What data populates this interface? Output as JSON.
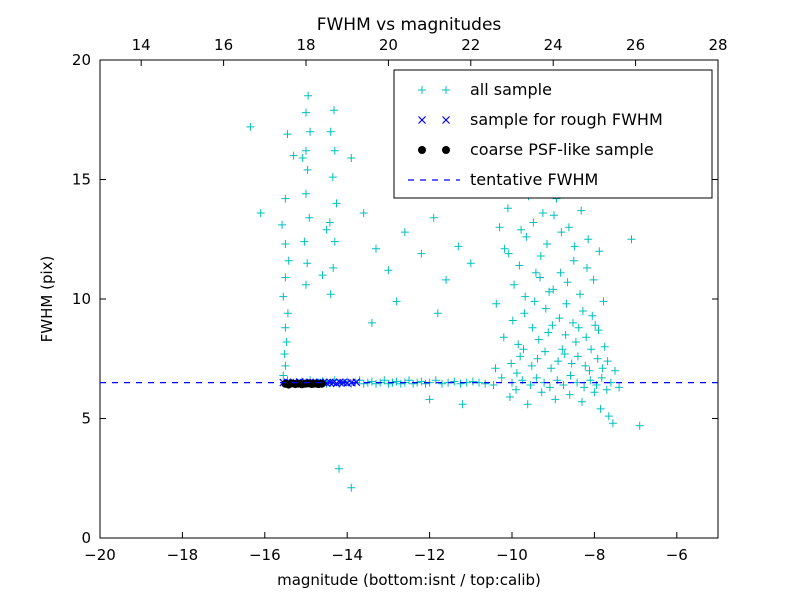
{
  "figure": {
    "title": "FWHM vs magnitudes",
    "xlabel": "magnitude (bottom:isnt / top:calib)",
    "ylabel": "FWHM (pix)"
  },
  "chart_data": {
    "type": "scatter",
    "title": "FWHM vs magnitudes",
    "xlabel": "magnitude (bottom:isnt / top:calib)",
    "ylabel": "FWHM (pix)",
    "xlim": [
      -20,
      -5
    ],
    "ylim": [
      0,
      20
    ],
    "grid": false,
    "legend_position": "upper right",
    "x_ticks_bottom_values": [
      -20,
      -18,
      -16,
      -14,
      -12,
      -10,
      -8,
      -6
    ],
    "x_ticks_bottom_labels": [
      "−20",
      "−18",
      "−16",
      "−14",
      "−12",
      "−10",
      "−8",
      "−6"
    ],
    "x_ticks_top_positions": [
      -19,
      -17,
      -15,
      -13,
      -11,
      -9,
      -7,
      -5
    ],
    "x_ticks_top_labels": [
      "14",
      "16",
      "18",
      "20",
      "22",
      "24",
      "26",
      "28"
    ],
    "y_ticks_values": [
      0,
      5,
      10,
      15,
      20
    ],
    "y_ticks_labels": [
      "0",
      "5",
      "10",
      "15",
      "20"
    ],
    "series": [
      {
        "name": "all sample",
        "type": "scatter",
        "marker": "plus",
        "color": "#00bfbf",
        "points": [
          -16.35,
          17.2,
          -16.1,
          13.6,
          -15.58,
          13.1,
          -15.55,
          6.8,
          -15.55,
          10.1,
          -15.52,
          7.7,
          -15.5,
          7.2,
          -15.5,
          8.8,
          -15.5,
          10.9,
          -15.5,
          12.3,
          -15.5,
          14.2,
          -15.47,
          8.2,
          -15.45,
          6.6,
          -15.45,
          16.9,
          -15.44,
          9.4,
          -15.42,
          11.6,
          -15.3,
          16.0,
          -15.08,
          15.9,
          -15.04,
          12.4,
          -15.0,
          10.6,
          -15.0,
          14.4,
          -15.0,
          16.2,
          -15.0,
          17.8,
          -14.97,
          11.5,
          -14.96,
          15.4,
          -14.95,
          18.5,
          -14.92,
          13.4,
          -14.9,
          17.0,
          -14.6,
          11.0,
          -14.5,
          12.9,
          -14.42,
          13.2,
          -14.4,
          10.2,
          -14.4,
          17.0,
          -14.35,
          15.1,
          -14.34,
          11.3,
          -14.32,
          17.9,
          -14.3,
          12.4,
          -14.3,
          16.2,
          -14.26,
          14.0,
          -14.2,
          2.9,
          -13.9,
          2.1,
          -13.9,
          15.9,
          -13.6,
          13.6,
          -13.4,
          9.0,
          -13.3,
          12.1,
          -13.0,
          11.2,
          -12.8,
          9.9,
          -12.6,
          12.8,
          -12.35,
          14.9,
          -12.2,
          11.9,
          -12.0,
          5.8,
          -11.9,
          13.4,
          -11.8,
          9.4,
          -11.6,
          10.8,
          -11.3,
          12.2,
          -11.2,
          5.6,
          -11.0,
          11.5,
          -15.3,
          6.5,
          -15.2,
          6.45,
          -15.1,
          6.55,
          -15.0,
          6.5,
          -14.9,
          6.6,
          -14.8,
          6.45,
          -14.7,
          6.5,
          -14.6,
          6.55,
          -14.5,
          6.45,
          -14.4,
          6.5,
          -14.3,
          6.6,
          -14.2,
          6.45,
          -14.1,
          6.5,
          -14.0,
          6.55,
          -13.9,
          6.45,
          -13.8,
          6.5,
          -13.7,
          6.6,
          -13.6,
          6.45,
          -13.5,
          6.5,
          -13.4,
          6.55,
          -13.3,
          6.45,
          -13.2,
          6.5,
          -13.1,
          6.6,
          -13.0,
          6.45,
          -12.9,
          6.5,
          -12.8,
          6.55,
          -12.7,
          6.45,
          -12.6,
          6.5,
          -12.5,
          6.6,
          -12.4,
          6.45,
          -12.3,
          6.5,
          -12.2,
          6.55,
          -12.1,
          6.45,
          -12.0,
          6.5,
          -11.85,
          6.6,
          -11.7,
          6.45,
          -11.55,
          6.5,
          -11.4,
          6.55,
          -11.25,
          6.45,
          -11.1,
          6.5,
          -10.95,
          6.55,
          -10.8,
          6.5,
          -10.65,
          6.45,
          -10.45,
          6.4,
          -10.4,
          7.1,
          -10.38,
          9.8,
          -10.3,
          13.0,
          -10.25,
          6.7,
          -10.2,
          8.4,
          -10.18,
          12.1,
          -10.1,
          13.8,
          -10.05,
          5.9,
          -10.0,
          6.5,
          -10.02,
          7.3,
          -9.98,
          9.1,
          -9.95,
          10.6,
          -10.08,
          11.9,
          -9.9,
          6.2,
          -9.88,
          6.9,
          -9.85,
          8.1,
          -9.82,
          11.4,
          -9.8,
          7.6,
          -9.78,
          12.9,
          -9.75,
          6.6,
          -9.72,
          7.9,
          -9.7,
          9.4,
          -9.68,
          10.1,
          -9.65,
          12.6,
          -9.62,
          5.6,
          -9.6,
          14.3,
          -9.55,
          6.4,
          -9.52,
          7.2,
          -9.5,
          8.8,
          -9.48,
          13.2,
          -9.45,
          9.9,
          -9.42,
          11.1,
          -9.4,
          6.7,
          -9.38,
          7.5,
          -9.35,
          8.3,
          -9.32,
          10.9,
          -9.3,
          11.8,
          -9.28,
          6.1,
          -9.25,
          13.6,
          -9.22,
          6.5,
          -9.2,
          7.8,
          -9.18,
          9.6,
          -9.15,
          12.3,
          -9.12,
          8.6,
          -9.1,
          10.3,
          -9.08,
          6.3,
          -9.05,
          7.1,
          -9.02,
          8.9,
          -9.0,
          10.4,
          -8.98,
          13.5,
          -8.95,
          5.8,
          -8.92,
          14.2,
          -8.9,
          6.6,
          -8.88,
          7.4,
          -8.85,
          9.2,
          -8.82,
          11.1,
          -8.8,
          12.8,
          -8.78,
          7.9,
          -8.75,
          6.4,
          -8.72,
          7.7,
          -8.7,
          8.5,
          -8.68,
          9.8,
          -8.65,
          10.7,
          -8.62,
          13.0,
          -8.6,
          6.0,
          -8.58,
          6.8,
          -8.55,
          7.3,
          -8.52,
          9.0,
          -8.5,
          11.6,
          -8.48,
          12.2,
          -8.45,
          8.2,
          -8.42,
          6.5,
          -8.4,
          7.6,
          -8.38,
          8.8,
          -8.35,
          10.2,
          -8.32,
          13.7,
          -8.3,
          5.7,
          -8.28,
          9.5,
          -8.25,
          6.3,
          -8.22,
          7.2,
          -8.2,
          8.4,
          -8.18,
          11.3,
          -8.15,
          12.5,
          -8.12,
          7.0,
          -8.1,
          6.6,
          -8.08,
          7.9,
          -8.05,
          9.3,
          -8.02,
          10.8,
          -8.0,
          6.1,
          -7.98,
          8.9,
          -7.95,
          6.4,
          -7.92,
          7.5,
          -7.9,
          8.7,
          -7.88,
          12.0,
          -7.85,
          5.4,
          -7.82,
          6.7,
          -7.8,
          7.1,
          -7.78,
          9.9,
          -7.75,
          8.0,
          -7.7,
          6.2,
          -7.68,
          7.4,
          -7.65,
          5.1,
          -7.6,
          6.5,
          -7.55,
          4.8,
          -7.5,
          7.0,
          -7.4,
          6.3,
          -7.1,
          12.5,
          -6.9,
          4.7
        ]
      },
      {
        "name": "sample for rough FWHM",
        "type": "scatter",
        "marker": "x",
        "color": "#0000ff",
        "points": [
          -15.55,
          6.5,
          -15.45,
          6.52,
          -15.38,
          6.48,
          -15.3,
          6.5,
          -15.22,
          6.47,
          -15.15,
          6.53,
          -15.05,
          6.5,
          -14.98,
          6.48,
          -14.9,
          6.52,
          -14.82,
          6.5,
          -14.74,
          6.47,
          -14.66,
          6.52,
          -14.58,
          6.5,
          -14.5,
          6.48,
          -14.42,
          6.52,
          -14.34,
          6.5,
          -14.26,
          6.47,
          -14.18,
          6.52,
          -14.1,
          6.5,
          -14.0,
          6.48,
          -13.9,
          6.5,
          -13.78,
          6.52
        ]
      },
      {
        "name": "coarse PSF-like sample",
        "type": "scatter",
        "marker": "circle",
        "color": "#000000",
        "points": [
          -15.5,
          6.45,
          -15.42,
          6.42,
          -15.34,
          6.47,
          -15.26,
          6.44,
          -15.18,
          6.46,
          -15.1,
          6.43,
          -15.02,
          6.45,
          -14.94,
          6.47,
          -14.86,
          6.44,
          -14.78,
          6.46,
          -14.7,
          6.44,
          -14.62,
          6.45
        ]
      },
      {
        "name": "tentative FWHM",
        "type": "hline",
        "linestyle": "dashed",
        "color": "#0000ff",
        "y": 6.5
      }
    ]
  }
}
